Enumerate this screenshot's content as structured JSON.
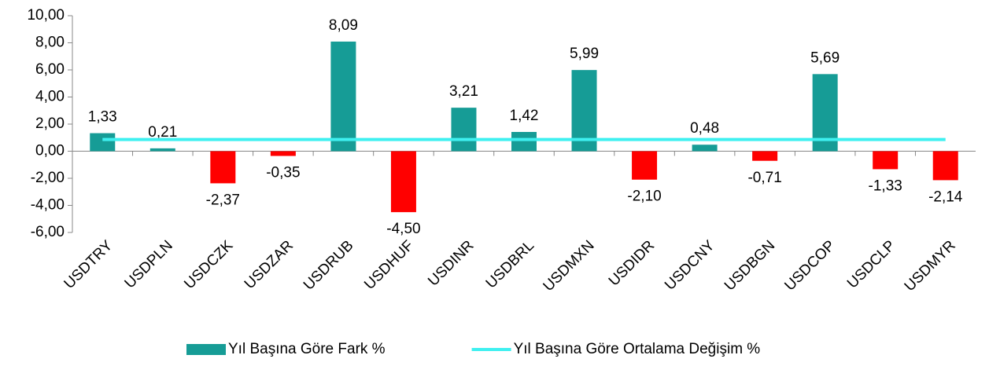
{
  "chart_data": {
    "type": "bar",
    "categories": [
      "USDTRY",
      "USDPLN",
      "USDCZK",
      "USDZAR",
      "USDRUB",
      "USDHUF",
      "USDINR",
      "USDBRL",
      "USDMXN",
      "USDIDR",
      "USDCNY",
      "USDBGN",
      "USDCOP",
      "USDCLP",
      "USDMYR"
    ],
    "series": [
      {
        "name": "Yıl Başına Göre Fark %",
        "type": "bar",
        "color": "#169c96",
        "negative_color": "#ff0000",
        "values": [
          1.33,
          0.21,
          -2.37,
          -0.35,
          8.09,
          -4.5,
          3.21,
          1.42,
          5.99,
          -2.1,
          0.48,
          -0.71,
          5.69,
          -1.33,
          -2.14
        ],
        "value_labels": [
          "1,33",
          "0,21",
          "-2,37",
          "-0,35",
          "8,09",
          "-4,50",
          "3,21",
          "1,42",
          "5,99",
          "-2,10",
          "0,48",
          "-0,71",
          "5,69",
          "-1,33",
          "-2,14"
        ]
      },
      {
        "name": "Yıl Başına Göre Ortalama Değişim %",
        "type": "line",
        "color": "#3ff0f0",
        "values": [
          0.86,
          0.86,
          0.86,
          0.86,
          0.86,
          0.86,
          0.86,
          0.86,
          0.86,
          0.86,
          0.86,
          0.86,
          0.86,
          0.86,
          0.86
        ]
      }
    ],
    "ylim": [
      -6,
      10
    ],
    "yticks": [
      {
        "value": -6,
        "label": "-6,00"
      },
      {
        "value": -4,
        "label": "-4,00"
      },
      {
        "value": -2,
        "label": "-2,00"
      },
      {
        "value": 0,
        "label": "0,00"
      },
      {
        "value": 2,
        "label": "2,00"
      },
      {
        "value": 4,
        "label": "4,00"
      },
      {
        "value": 6,
        "label": "6,00"
      },
      {
        "value": 8,
        "label": "8,00"
      },
      {
        "value": 10,
        "label": "10,00"
      }
    ],
    "legend": "bottom"
  }
}
